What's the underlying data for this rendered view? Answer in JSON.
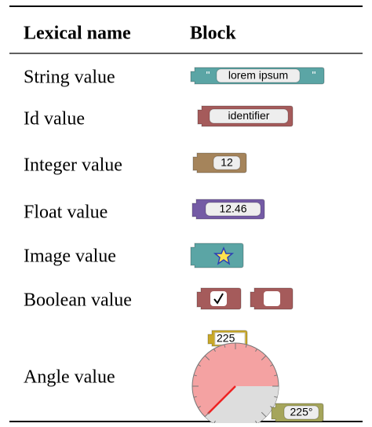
{
  "table": {
    "header": [
      "Lexical name",
      "Block"
    ],
    "rows": [
      {
        "label": "String value",
        "block": [
          "\"",
          "lorem ipsum",
          "\""
        ]
      },
      {
        "label": "Id value",
        "block": [
          "identifier"
        ]
      },
      {
        "label": "Integer value",
        "block": [
          "12"
        ]
      },
      {
        "label": "Float value",
        "block": [
          "12.46"
        ]
      },
      {
        "label": "Image value"
      },
      {
        "label": "Boolean value"
      },
      {
        "label": "Angle value",
        "block": [
          "225",
          "225°"
        ]
      }
    ]
  }
}
